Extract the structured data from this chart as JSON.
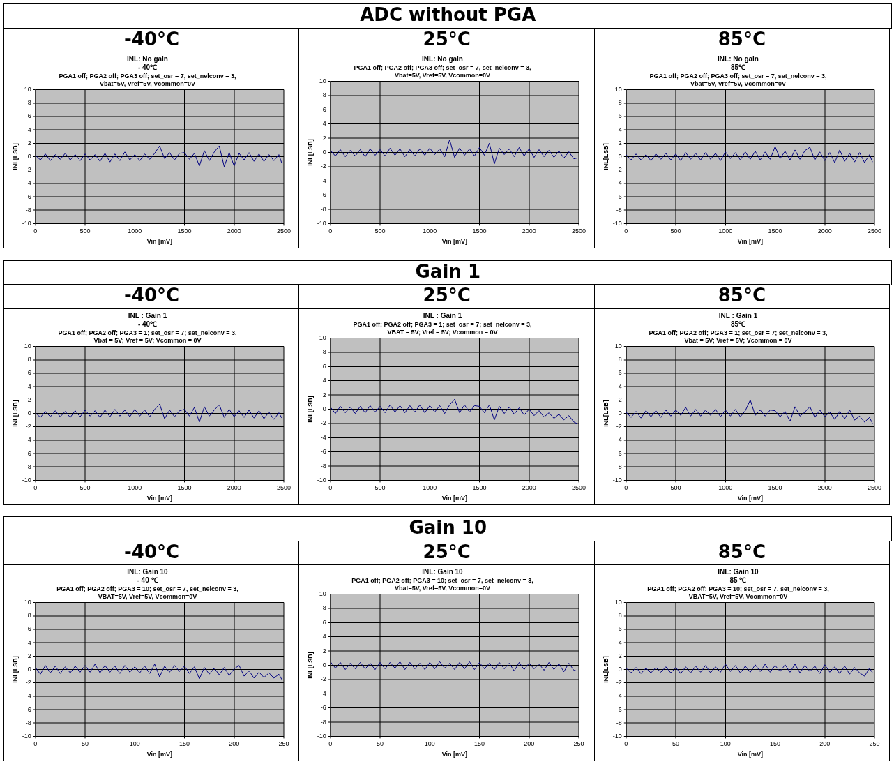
{
  "chart_data": [
    {
      "type": "other",
      "title": "ADC without PGA"
    },
    {
      "type": "other",
      "title": "-40°C"
    },
    {
      "type": "other",
      "title": "25°C"
    },
    {
      "type": "other",
      "title": "85°C"
    },
    {
      "type": "line",
      "title": "INL: No gain",
      "subtitle": "- 40℃",
      "annotations": [
        "PGA1 off; PGA2 off; PGA3 off; set_osr = 7, set_nelconv = 3,",
        "Vbat=5V, Vref=5V, Vcommon=0V"
      ],
      "xlabel": "Vin [mV]",
      "ylabel": "INL[LSB]",
      "color": "#000080",
      "grid": true,
      "marker": "none",
      "xlim": [
        0,
        2500
      ],
      "xticks": [
        0,
        500,
        1000,
        1500,
        2000,
        2500
      ],
      "ylim": [
        -10,
        10
      ],
      "yticks": [
        -10,
        -8,
        -6,
        -4,
        -2,
        0,
        2,
        4,
        6,
        8,
        10
      ],
      "x": [
        0,
        50,
        100,
        150,
        200,
        250,
        300,
        350,
        400,
        450,
        500,
        550,
        600,
        650,
        700,
        750,
        800,
        850,
        900,
        950,
        1000,
        1050,
        1100,
        1150,
        1200,
        1250,
        1300,
        1350,
        1400,
        1450,
        1500,
        1550,
        1600,
        1650,
        1700,
        1750,
        1800,
        1850,
        1900,
        1950,
        2000,
        2050,
        2100,
        2150,
        2200,
        2250,
        2300,
        2350,
        2400,
        2450,
        2480
      ],
      "values": [
        0.2,
        -0.5,
        0.4,
        -0.6,
        0.3,
        -0.4,
        0.5,
        -0.5,
        0.3,
        -0.6,
        0.4,
        -0.5,
        0.3,
        -0.7,
        0.5,
        -0.8,
        0.4,
        -0.6,
        0.7,
        -0.5,
        0.3,
        -0.6,
        0.4,
        -0.4,
        0.5,
        1.6,
        -0.3,
        0.6,
        -0.5,
        0.5,
        0.6,
        -0.4,
        0.5,
        -1.4,
        0.9,
        -0.6,
        0.7,
        1.6,
        -1.5,
        0.6,
        -1.4,
        0.5,
        -0.5,
        0.6,
        -0.7,
        0.4,
        -0.7,
        0.3,
        -0.6,
        0.3,
        -1.0
      ]
    },
    {
      "type": "line",
      "title": "INL: No gain",
      "annotations": [
        "PGA1 off; PGA2 off; PGA3 off; set_osr = 7, set_nelconv = 3,",
        "Vbat=5V, Vref=5V, Vcommon=0V"
      ],
      "xlabel": "Vin [mV]",
      "ylabel": "INL[LSB]",
      "color": "#000080",
      "grid": true,
      "marker": "none",
      "xlim": [
        0,
        2500
      ],
      "xticks": [
        0,
        500,
        1000,
        1500,
        2000,
        2500
      ],
      "ylim": [
        -10,
        10
      ],
      "yticks": [
        -10,
        -8,
        -6,
        -4,
        -2,
        0,
        2,
        4,
        6,
        8,
        10
      ],
      "x": [
        0,
        50,
        100,
        150,
        200,
        250,
        300,
        350,
        400,
        450,
        500,
        550,
        600,
        650,
        700,
        750,
        800,
        850,
        900,
        950,
        1000,
        1050,
        1100,
        1150,
        1200,
        1250,
        1300,
        1350,
        1400,
        1450,
        1500,
        1550,
        1600,
        1650,
        1700,
        1750,
        1800,
        1850,
        1900,
        1950,
        2000,
        2050,
        2100,
        2150,
        2200,
        2250,
        2300,
        2350,
        2400,
        2450,
        2480
      ],
      "values": [
        0.3,
        -0.5,
        0.4,
        -0.6,
        0.3,
        -0.5,
        0.4,
        -0.6,
        0.5,
        -0.4,
        0.4,
        -0.5,
        0.6,
        -0.4,
        0.5,
        -0.6,
        0.4,
        -0.5,
        0.5,
        -0.4,
        0.6,
        -0.3,
        0.5,
        -0.6,
        1.8,
        -0.7,
        0.6,
        -0.4,
        0.5,
        -0.5,
        0.7,
        -0.4,
        1.3,
        -1.6,
        0.6,
        -0.3,
        0.5,
        -0.6,
        0.7,
        -0.5,
        0.5,
        -0.7,
        0.4,
        -0.6,
        0.3,
        -0.7,
        0.2,
        -0.8,
        0.1,
        -0.9,
        -0.8
      ]
    },
    {
      "type": "line",
      "title": "INL: No gain",
      "subtitle": "85℃",
      "annotations": [
        "PGA1 off; PGA2 off; PGA3 off; set_osr = 7, set_nelconv = 3,",
        "Vbat=5V, Vref=5V, Vcommon=0V"
      ],
      "xlabel": "Vin [mV]",
      "ylabel": "INL[LSB]",
      "color": "#000080",
      "grid": true,
      "marker": "none",
      "xlim": [
        0,
        2500
      ],
      "xticks": [
        0,
        500,
        1000,
        1500,
        2000,
        2500
      ],
      "ylim": [
        -10,
        10
      ],
      "yticks": [
        -10,
        -8,
        -6,
        -4,
        -2,
        0,
        2,
        4,
        6,
        8,
        10
      ],
      "x": [
        0,
        50,
        100,
        150,
        200,
        250,
        300,
        350,
        400,
        450,
        500,
        550,
        600,
        650,
        700,
        750,
        800,
        850,
        900,
        950,
        1000,
        1050,
        1100,
        1150,
        1200,
        1250,
        1300,
        1350,
        1400,
        1450,
        1500,
        1550,
        1600,
        1650,
        1700,
        1750,
        1800,
        1850,
        1900,
        1950,
        2000,
        2050,
        2100,
        2150,
        2200,
        2250,
        2300,
        2350,
        2400,
        2450,
        2480
      ],
      "values": [
        0.3,
        -0.5,
        0.4,
        -0.5,
        0.3,
        -0.6,
        0.4,
        -0.4,
        0.5,
        -0.5,
        0.4,
        -0.6,
        0.6,
        -0.4,
        0.5,
        -0.5,
        0.6,
        -0.4,
        0.5,
        -0.6,
        0.7,
        -0.3,
        0.6,
        -0.5,
        0.7,
        -0.4,
        0.8,
        -0.5,
        0.7,
        -0.4,
        1.5,
        -0.3,
        0.8,
        -0.5,
        1.0,
        -0.4,
        0.9,
        1.4,
        -0.5,
        0.7,
        -0.6,
        0.6,
        -0.9,
        1.0,
        -0.7,
        0.5,
        -0.8,
        0.6,
        -0.9,
        0.3,
        -0.8
      ]
    },
    {
      "type": "other",
      "title": "Gain 1"
    },
    {
      "type": "other",
      "title": "-40°C"
    },
    {
      "type": "other",
      "title": "25°C"
    },
    {
      "type": "other",
      "title": "85°C"
    },
    {
      "type": "line",
      "title": "INL : Gain 1",
      "subtitle": "- 40℃",
      "annotations": [
        "PGA1 off; PGA2 off; PGA3 = 1; set_osr = 7; set_nelconv = 3,",
        "Vbat = 5V; Vref = 5V; Vcommon = 0V"
      ],
      "xlabel": "Vin [mV]",
      "ylabel": "INL[LSB]",
      "color": "#000080",
      "grid": true,
      "marker": "none",
      "xlim": [
        0,
        2500
      ],
      "xticks": [
        0,
        500,
        1000,
        1500,
        2000,
        2500
      ],
      "ylim": [
        -10,
        10
      ],
      "yticks": [
        -10,
        -8,
        -6,
        -4,
        -2,
        0,
        2,
        4,
        6,
        8,
        10
      ],
      "x": [
        0,
        50,
        100,
        150,
        200,
        250,
        300,
        350,
        400,
        450,
        500,
        550,
        600,
        650,
        700,
        750,
        800,
        850,
        900,
        950,
        1000,
        1050,
        1100,
        1150,
        1200,
        1250,
        1300,
        1350,
        1400,
        1450,
        1500,
        1550,
        1600,
        1650,
        1700,
        1750,
        1800,
        1850,
        1900,
        1950,
        2000,
        2050,
        2100,
        2150,
        2200,
        2250,
        2300,
        2350,
        2400,
        2450,
        2480
      ],
      "values": [
        0.1,
        -0.6,
        0.3,
        -0.5,
        0.4,
        -0.5,
        0.3,
        -0.6,
        0.4,
        -0.5,
        0.5,
        -0.4,
        0.4,
        -0.6,
        0.5,
        -0.5,
        0.6,
        -0.4,
        0.5,
        -0.5,
        0.6,
        -0.4,
        0.5,
        -0.5,
        0.6,
        1.4,
        -0.8,
        0.5,
        -0.5,
        0.4,
        0.6,
        -0.4,
        0.9,
        -1.3,
        1.0,
        -0.4,
        0.5,
        1.3,
        -0.6,
        0.6,
        -0.5,
        0.4,
        -0.6,
        0.5,
        -0.7,
        0.4,
        -0.8,
        0.2,
        -0.9,
        0.1,
        -0.7
      ]
    },
    {
      "type": "line",
      "title": "INL : Gain 1",
      "annotations": [
        "PGA1 off; PGA2 off; PGA3 = 1; set_osr = 7; set_nelconv = 3,",
        "VBAT = 5V; Vref = 5V; Vcommon = 0V"
      ],
      "xlabel": "Vin [mV]",
      "ylabel": "INL[LSB]",
      "color": "#000080",
      "grid": true,
      "marker": "none",
      "xlim": [
        0,
        2500
      ],
      "xticks": [
        0,
        500,
        1000,
        1500,
        2000,
        2500
      ],
      "ylim": [
        -10,
        10
      ],
      "yticks": [
        -10,
        -8,
        -6,
        -4,
        -2,
        0,
        2,
        4,
        6,
        8,
        10
      ],
      "x": [
        0,
        50,
        100,
        150,
        200,
        250,
        300,
        350,
        400,
        450,
        500,
        550,
        600,
        650,
        700,
        750,
        800,
        850,
        900,
        950,
        1000,
        1050,
        1100,
        1150,
        1200,
        1250,
        1300,
        1350,
        1400,
        1450,
        1500,
        1550,
        1600,
        1650,
        1700,
        1750,
        1800,
        1850,
        1900,
        1950,
        2000,
        2050,
        2100,
        2150,
        2200,
        2250,
        2300,
        2350,
        2400,
        2450,
        2480
      ],
      "values": [
        0.3,
        -0.6,
        0.4,
        -0.5,
        0.3,
        -0.6,
        0.4,
        -0.5,
        0.5,
        -0.4,
        0.4,
        -0.5,
        0.6,
        -0.4,
        0.5,
        -0.5,
        0.5,
        -0.4,
        0.6,
        -0.5,
        0.5,
        -0.4,
        0.5,
        -0.6,
        0.6,
        1.4,
        -0.5,
        0.6,
        -0.4,
        0.5,
        0.4,
        -0.5,
        0.6,
        -1.5,
        0.4,
        -0.6,
        0.3,
        -0.7,
        0.2,
        -0.8,
        0.0,
        -0.9,
        -0.2,
        -1.1,
        -0.5,
        -1.3,
        -0.7,
        -1.5,
        -0.9,
        -1.8,
        -2.0
      ]
    },
    {
      "type": "line",
      "title": "INL : Gain 1",
      "subtitle": "85℃",
      "annotations": [
        "PGA1 off; PGA2 off; PGA3 = 1; set_osr = 7; set_nelconv = 3,",
        "Vbat = 5V; Vref = 5V; Vcommon = 0V"
      ],
      "xlabel": "Vin [mV]",
      "ylabel": "INL[LSB]",
      "color": "#000080",
      "grid": true,
      "marker": "none",
      "xlim": [
        0,
        2500
      ],
      "xticks": [
        0,
        500,
        1000,
        1500,
        2000,
        2500
      ],
      "ylim": [
        -10,
        10
      ],
      "yticks": [
        -10,
        -8,
        -6,
        -4,
        -2,
        0,
        2,
        4,
        6,
        8,
        10
      ],
      "x": [
        0,
        50,
        100,
        150,
        200,
        250,
        300,
        350,
        400,
        450,
        500,
        550,
        600,
        650,
        700,
        750,
        800,
        850,
        900,
        950,
        1000,
        1050,
        1100,
        1150,
        1200,
        1250,
        1300,
        1350,
        1400,
        1450,
        1500,
        1550,
        1600,
        1650,
        1700,
        1750,
        1800,
        1850,
        1900,
        1950,
        2000,
        2050,
        2100,
        2150,
        2200,
        2250,
        2300,
        2350,
        2400,
        2450,
        2480
      ],
      "values": [
        0.2,
        -0.6,
        0.3,
        -0.7,
        0.4,
        -0.5,
        0.4,
        -0.6,
        0.5,
        -0.4,
        0.5,
        -0.3,
        0.9,
        -0.4,
        0.6,
        -0.4,
        0.5,
        -0.3,
        0.6,
        -0.5,
        0.5,
        -0.4,
        0.6,
        -0.5,
        0.4,
        2.0,
        -0.3,
        0.5,
        -0.4,
        0.5,
        0.4,
        -0.5,
        0.3,
        -1.2,
        1.0,
        -0.4,
        0.2,
        1.0,
        -0.6,
        0.5,
        -0.5,
        0.2,
        -0.9,
        0.3,
        -0.8,
        0.5,
        -1.0,
        -0.4,
        -1.3,
        -0.6,
        -1.5
      ]
    },
    {
      "type": "other",
      "title": "Gain 10"
    },
    {
      "type": "other",
      "title": "-40°C"
    },
    {
      "type": "other",
      "title": "25°C"
    },
    {
      "type": "other",
      "title": "85°C"
    },
    {
      "type": "line",
      "title": "INL: Gain 10",
      "subtitle": "- 40 ℃",
      "annotations": [
        "PGA1 off; PGA2 off; PGA3 = 10; set_osr = 7, set_nelconv = 3,",
        "VBAT=5V, Vref=5V, Vcommon=0V"
      ],
      "xlabel": "Vin [mV]",
      "ylabel": "INL[LSB]",
      "color": "#000080",
      "grid": true,
      "marker": "none",
      "xlim": [
        0,
        250
      ],
      "xticks": [
        0,
        50,
        100,
        150,
        200,
        250
      ],
      "ylim": [
        -10,
        10
      ],
      "yticks": [
        -10,
        -8,
        -6,
        -4,
        -2,
        0,
        2,
        4,
        6,
        8,
        10
      ],
      "x": [
        0,
        5,
        10,
        15,
        20,
        25,
        30,
        35,
        40,
        45,
        50,
        55,
        60,
        65,
        70,
        75,
        80,
        85,
        90,
        95,
        100,
        105,
        110,
        115,
        120,
        125,
        130,
        135,
        140,
        145,
        150,
        155,
        160,
        165,
        170,
        175,
        180,
        185,
        190,
        195,
        200,
        205,
        210,
        215,
        220,
        225,
        230,
        235,
        240,
        245,
        248
      ],
      "values": [
        0.3,
        -0.7,
        0.6,
        -0.5,
        0.5,
        -0.6,
        0.4,
        -0.5,
        0.5,
        -0.4,
        0.6,
        -0.4,
        0.8,
        -0.5,
        0.6,
        -0.4,
        0.5,
        -0.6,
        0.6,
        -0.4,
        0.4,
        -0.5,
        0.5,
        -0.6,
        0.8,
        -1.1,
        0.5,
        -0.4,
        0.6,
        -0.3,
        0.5,
        -0.6,
        0.4,
        -1.4,
        0.3,
        -0.7,
        0.2,
        -0.8,
        0.3,
        -0.9,
        0.1,
        0.6,
        -1.0,
        -0.2,
        -1.3,
        -0.4,
        -1.2,
        -0.5,
        -1.3,
        -0.7,
        -1.5
      ]
    },
    {
      "type": "line",
      "title": "INL: Gain 10",
      "annotations": [
        "PGA1 off; PGA2 off; PGA3 = 10; set_osr = 7, set_nelconv = 3,",
        "Vbat=5V, Vref=5V, Vcommon=0V"
      ],
      "xlabel": "Vin [mV]",
      "ylabel": "INL[LSB]",
      "color": "#000080",
      "grid": true,
      "marker": "none",
      "xlim": [
        0,
        250
      ],
      "xticks": [
        0,
        50,
        100,
        150,
        200,
        250
      ],
      "ylim": [
        -10,
        10
      ],
      "yticks": [
        -10,
        -8,
        -6,
        -4,
        -2,
        0,
        2,
        4,
        6,
        8,
        10
      ],
      "x": [
        0,
        5,
        10,
        15,
        20,
        25,
        30,
        35,
        40,
        45,
        50,
        55,
        60,
        65,
        70,
        75,
        80,
        85,
        90,
        95,
        100,
        105,
        110,
        115,
        120,
        125,
        130,
        135,
        140,
        145,
        150,
        155,
        160,
        165,
        170,
        175,
        180,
        185,
        190,
        195,
        200,
        205,
        210,
        215,
        220,
        225,
        230,
        235,
        240,
        245,
        248
      ],
      "values": [
        0.5,
        -0.4,
        0.4,
        -0.6,
        0.3,
        -0.5,
        0.4,
        -0.5,
        0.3,
        -0.6,
        0.4,
        -0.5,
        0.4,
        -0.4,
        0.5,
        -0.6,
        0.4,
        -0.5,
        0.3,
        -0.6,
        0.4,
        -0.5,
        0.5,
        -0.4,
        0.3,
        -0.6,
        0.4,
        -0.5,
        0.5,
        -0.6,
        0.4,
        -0.5,
        0.3,
        -0.6,
        0.4,
        -0.5,
        0.3,
        -0.8,
        0.4,
        -0.6,
        0.3,
        -0.5,
        0.2,
        -0.7,
        0.4,
        -0.6,
        0.2,
        -0.9,
        0.3,
        -0.7,
        -0.8
      ]
    },
    {
      "type": "line",
      "title": "INL: Gain 10",
      "subtitle": "85 ℃",
      "annotations": [
        "PGA1 off; PGA2 off; PGA3 = 10; set_osr = 7, set_nelconv = 3,",
        "VBAT=5V, Vref=5V, Vcommon=0V"
      ],
      "xlabel": "Vin [mV]",
      "ylabel": "INL[LSB]",
      "color": "#000080",
      "grid": true,
      "marker": "none",
      "xlim": [
        0,
        250
      ],
      "xticks": [
        0,
        50,
        100,
        150,
        200,
        250
      ],
      "ylim": [
        -10,
        10
      ],
      "yticks": [
        -10,
        -8,
        -6,
        -4,
        -2,
        0,
        2,
        4,
        6,
        8,
        10
      ],
      "x": [
        0,
        5,
        10,
        15,
        20,
        25,
        30,
        35,
        40,
        45,
        50,
        55,
        60,
        65,
        70,
        75,
        80,
        85,
        90,
        95,
        100,
        105,
        110,
        115,
        120,
        125,
        130,
        135,
        140,
        145,
        150,
        155,
        160,
        165,
        170,
        175,
        180,
        185,
        190,
        195,
        200,
        205,
        210,
        215,
        220,
        225,
        230,
        235,
        240,
        245,
        248
      ],
      "values": [
        0.2,
        -0.5,
        0.3,
        -0.6,
        0.2,
        -0.5,
        0.3,
        -0.4,
        0.4,
        -0.5,
        0.3,
        -0.6,
        0.4,
        -0.5,
        0.5,
        -0.4,
        0.6,
        -0.5,
        0.4,
        -0.4,
        0.8,
        -0.3,
        0.6,
        -0.5,
        0.5,
        -0.4,
        0.7,
        -0.3,
        0.8,
        -0.4,
        0.6,
        -0.3,
        0.7,
        -0.4,
        0.8,
        -0.5,
        0.6,
        -0.3,
        0.5,
        -0.6,
        0.7,
        -0.4,
        0.4,
        -0.6,
        0.5,
        -0.7,
        0.3,
        -0.5,
        -1.0,
        0.2,
        -0.5
      ]
    }
  ]
}
